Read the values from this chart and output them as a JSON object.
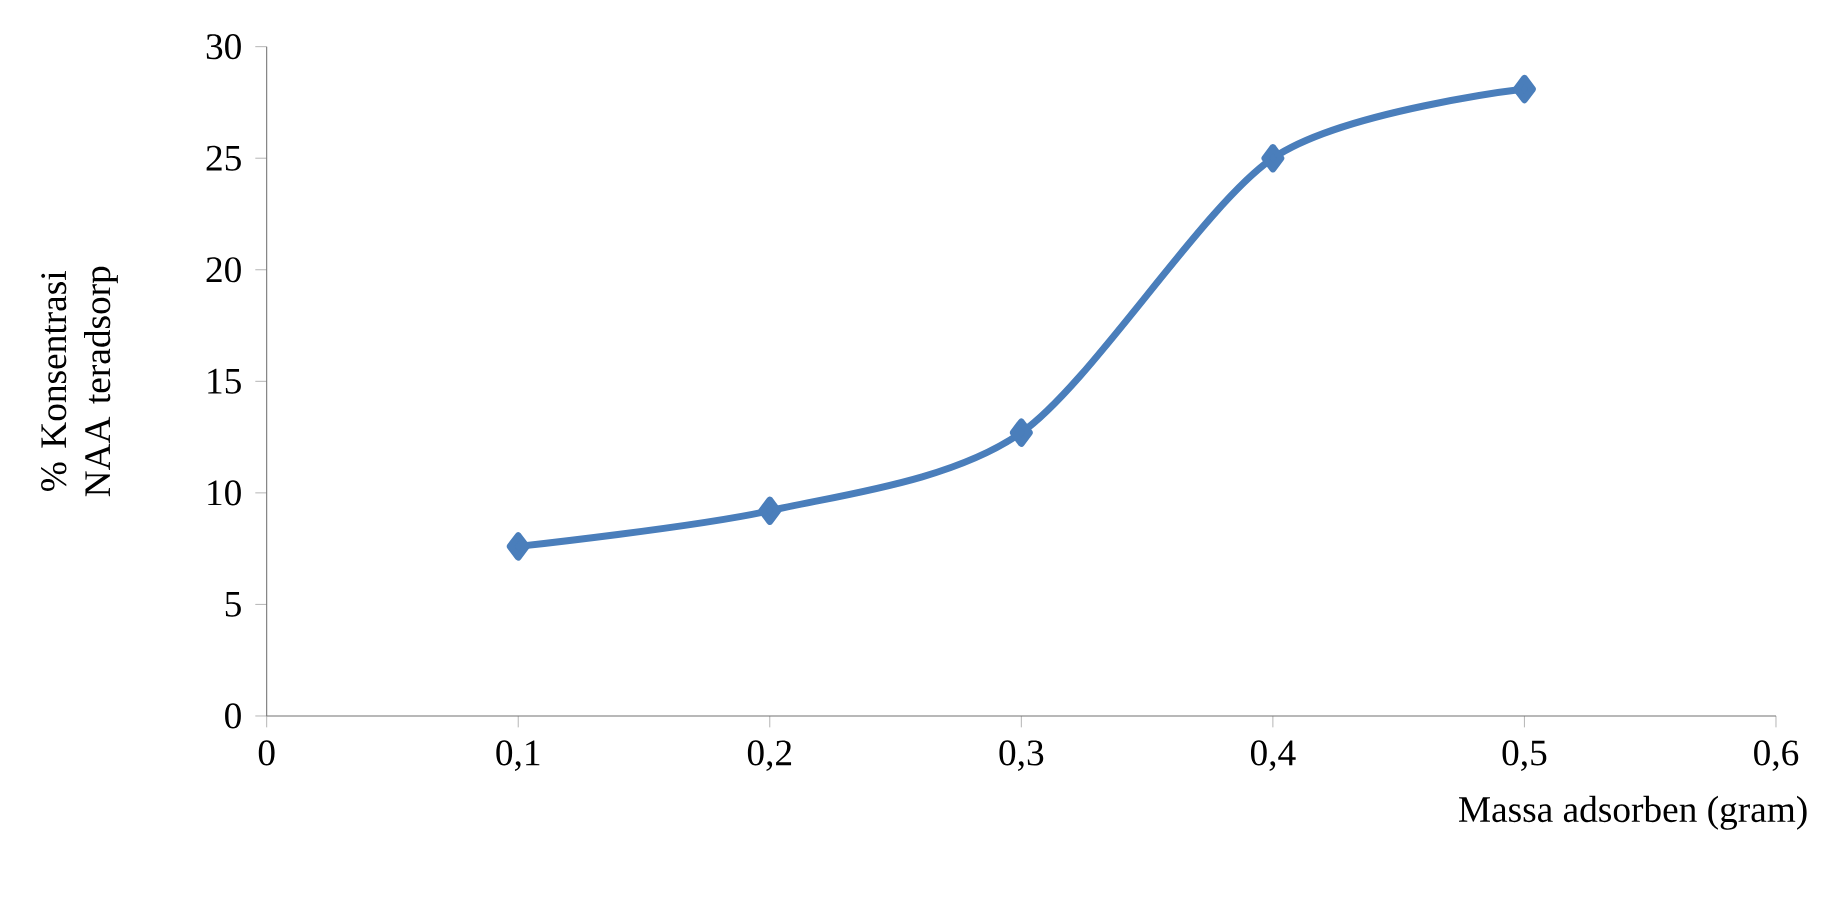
{
  "chart_data": {
    "type": "line",
    "xlabel": "Massa adsorben (gram)",
    "ylabel": "% Konsentrasi NAA teradsorp",
    "x": [
      0.1,
      0.2,
      0.3,
      0.4,
      0.5
    ],
    "series": [
      {
        "color": "#4a7ebb",
        "values": [
          7.6,
          9.2,
          12.7,
          25.0,
          28.1
        ]
      }
    ],
    "xlim": [
      0,
      0.6
    ],
    "xticks": [
      0,
      {
        "value": 0.1,
        "label": "0,1"
      },
      {
        "value": 0.2,
        "label": "0,2"
      },
      {
        "value": 0.3,
        "label": "0,3"
      },
      {
        "value": 0.4,
        "label": "0,4"
      },
      {
        "value": 0.5,
        "label": "0,5"
      },
      {
        "value": 0.6,
        "label": "0,6"
      }
    ],
    "ylim": [
      0,
      30
    ],
    "yticks": [
      0,
      5,
      10,
      15,
      20,
      25,
      30
    ],
    "marker": "diamond",
    "line_style": "solid"
  }
}
